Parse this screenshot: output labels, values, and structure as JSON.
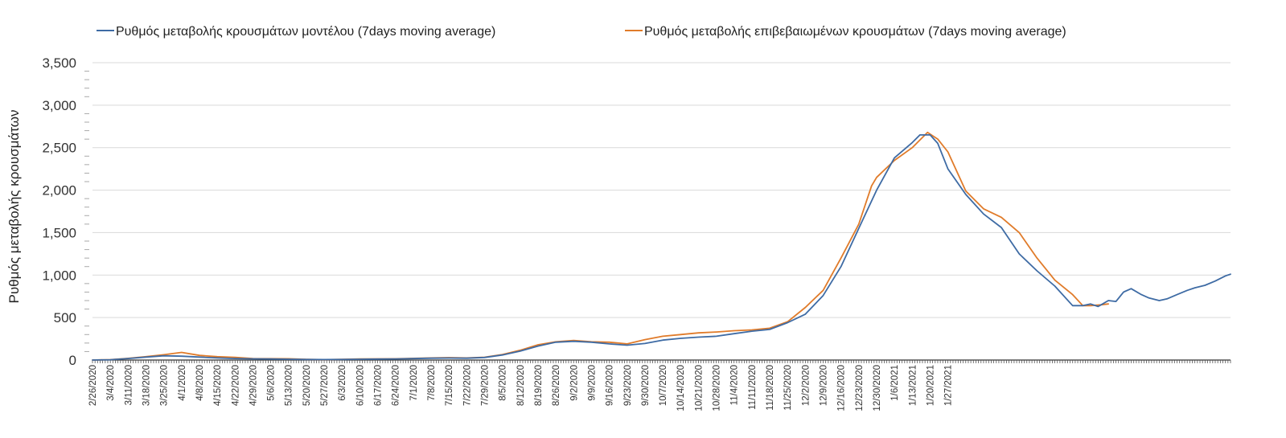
{
  "chart_data": {
    "type": "line",
    "title": "",
    "xlabel": "",
    "ylabel": "Ρυθμός μεταβολής κρουσμάτων",
    "ylim": [
      0,
      3500
    ],
    "yticks": [
      0,
      500,
      1000,
      1500,
      2000,
      2500,
      3000,
      3500
    ],
    "ytick_labels": [
      "0",
      "500",
      "1,000",
      "1,500",
      "2,000",
      "2,500",
      "3,000",
      "3,500"
    ],
    "x_start": "2/26/2020",
    "x_end": "2/1/2021",
    "x_tick_labels": [
      "2/26/2020",
      "3/4/2020",
      "3/11/2020",
      "3/18/2020",
      "3/25/2020",
      "4/1/2020",
      "4/8/2020",
      "4/15/2020",
      "4/22/2020",
      "4/29/2020",
      "5/6/2020",
      "5/13/2020",
      "5/20/2020",
      "5/27/2020",
      "6/3/2020",
      "6/10/2020",
      "6/17/2020",
      "6/24/2020",
      "7/1/2020",
      "7/8/2020",
      "7/15/2020",
      "7/22/2020",
      "7/29/2020",
      "8/5/2020",
      "8/12/2020",
      "8/19/2020",
      "8/26/2020",
      "9/2/2020",
      "9/9/2020",
      "9/16/2020",
      "9/23/2020",
      "9/30/2020",
      "10/7/2020",
      "10/14/2020",
      "10/21/2020",
      "10/28/2020",
      "11/4/2020",
      "11/11/2020",
      "11/18/2020",
      "11/25/2020",
      "12/2/2020",
      "12/9/2020",
      "12/16/2020",
      "12/23/2020",
      "12/30/2020",
      "1/6/2021",
      "1/13/2021",
      "1/20/2021",
      "1/27/2021"
    ],
    "grid": true,
    "legend_position": "top",
    "series": [
      {
        "name": "Ρυθμός μεταβολής κρουσμάτων μοντέλου (7days moving average)",
        "color": "#3E6BA4",
        "points": [
          [
            0,
            0
          ],
          [
            7,
            4
          ],
          [
            14,
            18
          ],
          [
            21,
            35
          ],
          [
            28,
            50
          ],
          [
            35,
            45
          ],
          [
            42,
            35
          ],
          [
            49,
            25
          ],
          [
            56,
            18
          ],
          [
            63,
            14
          ],
          [
            70,
            12
          ],
          [
            77,
            9
          ],
          [
            84,
            7
          ],
          [
            91,
            6
          ],
          [
            98,
            7
          ],
          [
            105,
            9
          ],
          [
            112,
            11
          ],
          [
            119,
            13
          ],
          [
            126,
            17
          ],
          [
            133,
            22
          ],
          [
            140,
            24
          ],
          [
            147,
            22
          ],
          [
            154,
            30
          ],
          [
            161,
            60
          ],
          [
            168,
            105
          ],
          [
            175,
            165
          ],
          [
            182,
            210
          ],
          [
            189,
            220
          ],
          [
            196,
            210
          ],
          [
            203,
            190
          ],
          [
            210,
            175
          ],
          [
            217,
            195
          ],
          [
            224,
            235
          ],
          [
            231,
            255
          ],
          [
            238,
            270
          ],
          [
            245,
            280
          ],
          [
            252,
            310
          ],
          [
            259,
            340
          ],
          [
            266,
            360
          ],
          [
            273,
            440
          ],
          [
            280,
            540
          ],
          [
            287,
            760
          ],
          [
            294,
            1100
          ],
          [
            301,
            1550
          ],
          [
            308,
            2000
          ],
          [
            315,
            2380
          ],
          [
            322,
            2560
          ],
          [
            325,
            2650
          ],
          [
            329,
            2650
          ],
          [
            332,
            2550
          ],
          [
            336,
            2250
          ],
          [
            343,
            1950
          ],
          [
            350,
            1720
          ],
          [
            357,
            1560
          ],
          [
            364,
            1250
          ],
          [
            371,
            1050
          ],
          [
            378,
            870
          ],
          [
            385,
            640
          ],
          [
            389,
            640
          ],
          [
            392,
            660
          ],
          [
            395,
            630
          ],
          [
            399,
            700
          ],
          [
            402,
            690
          ],
          [
            405,
            800
          ],
          [
            408,
            840
          ],
          [
            412,
            770
          ],
          [
            415,
            730
          ],
          [
            419,
            700
          ],
          [
            422,
            720
          ],
          [
            426,
            770
          ],
          [
            430,
            820
          ],
          [
            433,
            850
          ],
          [
            437,
            880
          ],
          [
            441,
            930
          ],
          [
            445,
            990
          ],
          [
            447,
            1010
          ]
        ]
      },
      {
        "name": "Ρυθμός μεταβολής επιβεβαιωμένων κρουσμάτων (7days moving average)",
        "color": "#E07B2A",
        "points": [
          [
            0,
            0
          ],
          [
            7,
            5
          ],
          [
            14,
            20
          ],
          [
            21,
            40
          ],
          [
            28,
            62
          ],
          [
            35,
            90
          ],
          [
            42,
            55
          ],
          [
            49,
            40
          ],
          [
            56,
            32
          ],
          [
            63,
            18
          ],
          [
            70,
            16
          ],
          [
            77,
            15
          ],
          [
            84,
            8
          ],
          [
            91,
            5
          ],
          [
            98,
            8
          ],
          [
            105,
            12
          ],
          [
            112,
            14
          ],
          [
            119,
            15
          ],
          [
            126,
            20
          ],
          [
            133,
            25
          ],
          [
            140,
            28
          ],
          [
            147,
            25
          ],
          [
            154,
            33
          ],
          [
            161,
            65
          ],
          [
            168,
            115
          ],
          [
            175,
            180
          ],
          [
            182,
            215
          ],
          [
            189,
            230
          ],
          [
            196,
            215
          ],
          [
            203,
            210
          ],
          [
            210,
            190
          ],
          [
            217,
            240
          ],
          [
            224,
            280
          ],
          [
            231,
            300
          ],
          [
            238,
            320
          ],
          [
            245,
            330
          ],
          [
            252,
            345
          ],
          [
            259,
            355
          ],
          [
            266,
            375
          ],
          [
            273,
            450
          ],
          [
            280,
            620
          ],
          [
            287,
            820
          ],
          [
            294,
            1200
          ],
          [
            301,
            1600
          ],
          [
            306,
            2050
          ],
          [
            308,
            2150
          ],
          [
            315,
            2350
          ],
          [
            322,
            2500
          ],
          [
            328,
            2680
          ],
          [
            332,
            2600
          ],
          [
            336,
            2450
          ],
          [
            343,
            1990
          ],
          [
            350,
            1780
          ],
          [
            357,
            1680
          ],
          [
            364,
            1500
          ],
          [
            371,
            1200
          ],
          [
            378,
            940
          ],
          [
            385,
            770
          ],
          [
            389,
            640
          ],
          [
            392,
            640
          ],
          [
            396,
            650
          ],
          [
            399,
            660
          ]
        ]
      }
    ]
  }
}
